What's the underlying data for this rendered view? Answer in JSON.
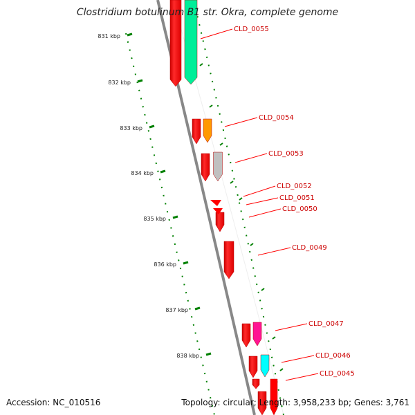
{
  "title": "Clostridium botulinum B1 str. Okra, complete genome",
  "footer": {
    "accession": "Accession: NC_010516",
    "summary": "Topology: circular; Length: 3,958,233 bp; Genes: 3,761"
  },
  "ticks": [
    {
      "label": "831 kbp"
    },
    {
      "label": "832 kbp"
    },
    {
      "label": "833 kbp"
    },
    {
      "label": "834 kbp"
    },
    {
      "label": "835 kbp"
    },
    {
      "label": "836 kbp"
    },
    {
      "label": "837 kbp"
    },
    {
      "label": "838 kbp"
    }
  ],
  "genes": [
    {
      "label": "CLD_0055",
      "color": "#00ee99"
    },
    {
      "label": "CLD_0054",
      "color": "#ff9900"
    },
    {
      "label": "CLD_0053",
      "color": "#c0c0c0"
    },
    {
      "label": "CLD_0052",
      "color": "#ff0000"
    },
    {
      "label": "CLD_0051",
      "color": "#ff0000"
    },
    {
      "label": "CLD_0050",
      "color": "#ff0000"
    },
    {
      "label": "CLD_0049",
      "color": "#ff0000"
    },
    {
      "label": "CLD_0047",
      "color": "#ff1493"
    },
    {
      "label": "CLD_0046",
      "color": "#00ffff"
    },
    {
      "label": "CLD_0045",
      "color": "#ff0000"
    }
  ],
  "colors": {
    "backbone": "#888888",
    "cds": "#ff0000",
    "tick": "#008000",
    "label_line": "#ff0000",
    "label_text": "#cc0000"
  }
}
